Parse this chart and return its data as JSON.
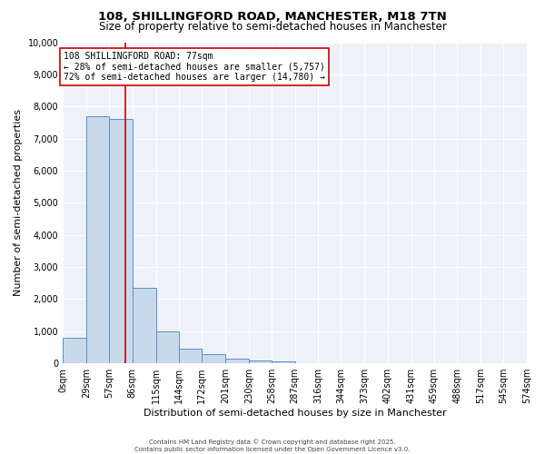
{
  "title": "108, SHILLINGFORD ROAD, MANCHESTER, M18 7TN",
  "subtitle": "Size of property relative to semi-detached houses in Manchester",
  "xlabel": "Distribution of semi-detached houses by size in Manchester",
  "ylabel": "Number of semi-detached properties",
  "bin_edges": [
    0,
    29,
    57,
    86,
    115,
    144,
    172,
    201,
    230,
    258,
    287,
    316,
    344,
    373,
    402,
    431,
    459,
    488,
    517,
    545,
    574
  ],
  "bar_heights": [
    800,
    7700,
    7600,
    2350,
    1000,
    450,
    290,
    140,
    100,
    50,
    20,
    5,
    2,
    1,
    0,
    0,
    0,
    0,
    0,
    0
  ],
  "bar_color": "#c9d9ec",
  "bar_edge_color": "#5b8fc9",
  "property_size": 77,
  "ylim": [
    0,
    10000
  ],
  "yticks": [
    0,
    1000,
    2000,
    3000,
    4000,
    5000,
    6000,
    7000,
    8000,
    9000,
    10000
  ],
  "annotation_title": "108 SHILLINGFORD ROAD: 77sqm",
  "annotation_line1": "← 28% of semi-detached houses are smaller (5,757)",
  "annotation_line2": "72% of semi-detached houses are larger (14,780) →",
  "red_line_color": "#cc0000",
  "annotation_box_color": "#ffffff",
  "annotation_box_edge": "#cc0000",
  "footer1": "Contains HM Land Registry data © Crown copyright and database right 2025.",
  "footer2": "Contains public sector information licensed under the Open Government Licence v3.0.",
  "background_color": "#eef2f8",
  "grid_color": "#ffffff",
  "title_fontsize": 9.5,
  "subtitle_fontsize": 8.5,
  "tick_label_fontsize": 7,
  "ylabel_fontsize": 8,
  "xlabel_fontsize": 8,
  "annotation_fontsize": 7,
  "footer_fontsize": 5
}
